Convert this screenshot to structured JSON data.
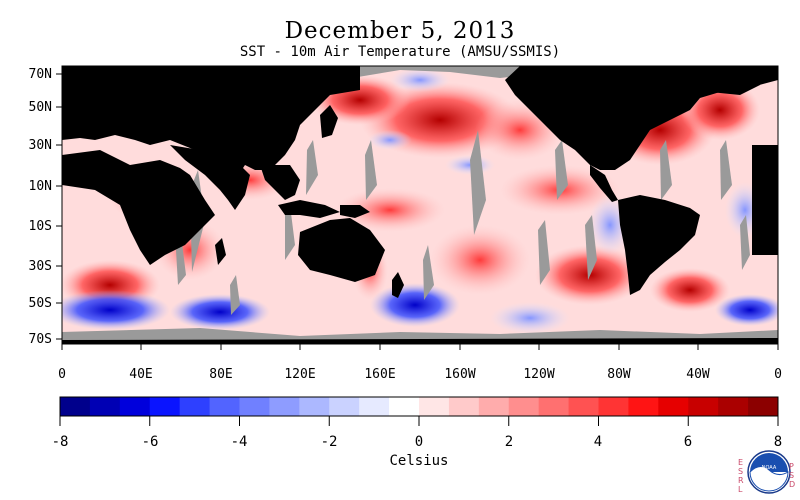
{
  "title": "December 5, 2013",
  "subtitle": "SST - 10m Air Temperature (AMSU/SSMIS)",
  "map": {
    "lat_labels": [
      "70N",
      "50N",
      "30N",
      "10N",
      "10S",
      "30S",
      "50S",
      "70S"
    ],
    "lon_labels": [
      "0",
      "40E",
      "80E",
      "120E",
      "160E",
      "160W",
      "120W",
      "80W",
      "40W",
      "0"
    ],
    "colors": {
      "land": "#000000",
      "missing": "#9a9a9a",
      "ice": "#9a9a9a"
    }
  },
  "colorbar": {
    "label": "Celsius",
    "ticks": [
      "-8",
      "-6",
      "-4",
      "-2",
      "0",
      "2",
      "4",
      "6",
      "8"
    ],
    "range": [
      -8,
      8
    ],
    "colors": [
      "#00008c",
      "#0000b4",
      "#0000dc",
      "#0a14ff",
      "#2e40ff",
      "#5264ff",
      "#7080ff",
      "#8e9cff",
      "#acb8ff",
      "#cad2ff",
      "#e6eaff",
      "#ffffff",
      "#ffe6e6",
      "#ffcaca",
      "#ffacac",
      "#ff8e8e",
      "#ff7070",
      "#ff5252",
      "#ff3434",
      "#ff1414",
      "#e60000",
      "#c80000",
      "#aa0000",
      "#8c0000"
    ]
  },
  "logos": {
    "left_vertical": "ESRL",
    "right_vertical": "PSD",
    "badge": "NOAA"
  }
}
